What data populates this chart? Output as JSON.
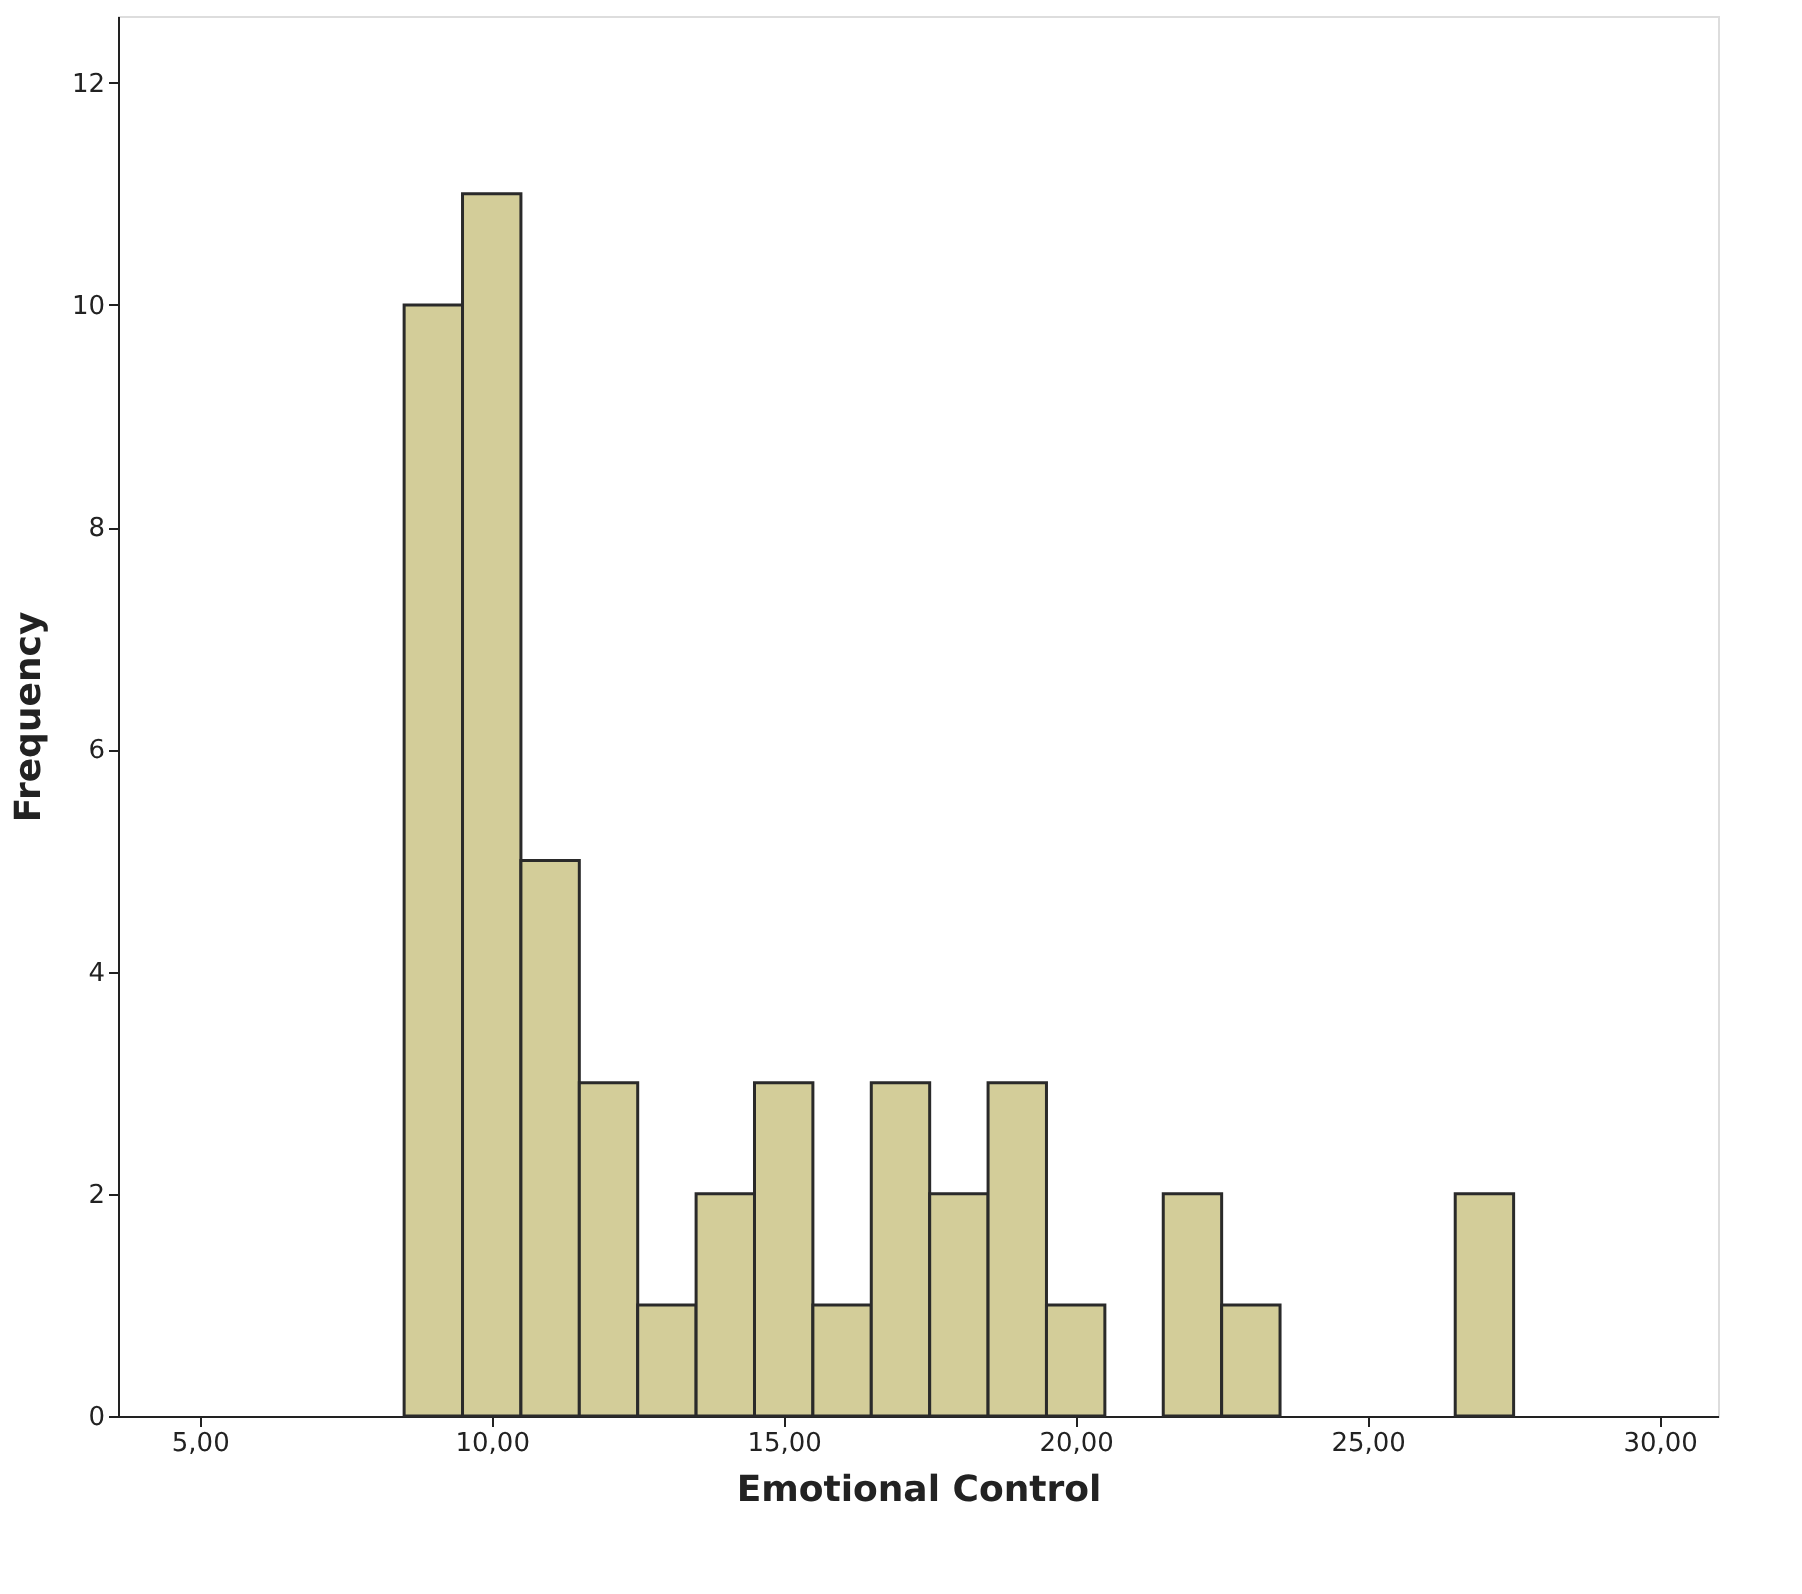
{
  "chart_data": {
    "type": "histogram",
    "xlabel": "Emotional Control",
    "ylabel": "Frequency",
    "bins": [
      8.5,
      9.5,
      10.5,
      11.5,
      12.5,
      13.5,
      14.5,
      15.5,
      16.5,
      17.5,
      18.5,
      19.5,
      20.5,
      21.5,
      22.5,
      23.5,
      24.5,
      25.5,
      26.5,
      27.5
    ],
    "values": [
      10,
      11,
      5,
      3,
      1,
      2,
      3,
      1,
      3,
      2,
      3,
      1,
      0,
      2,
      1,
      0,
      0,
      0,
      2
    ],
    "color": "#d3cd99",
    "xlim": [
      3.6,
      31.0
    ],
    "ylim": [
      0,
      12.6
    ],
    "xticks": [
      {
        "value": 5,
        "label": "5,00"
      },
      {
        "value": 10,
        "label": "10,00"
      },
      {
        "value": 15,
        "label": "15,00"
      },
      {
        "value": 20,
        "label": "20,00"
      },
      {
        "value": 25,
        "label": "25,00"
      },
      {
        "value": 30,
        "label": "30,00"
      }
    ],
    "yticks": [
      0,
      2,
      4,
      6,
      8,
      10,
      12
    ],
    "grid": false
  }
}
